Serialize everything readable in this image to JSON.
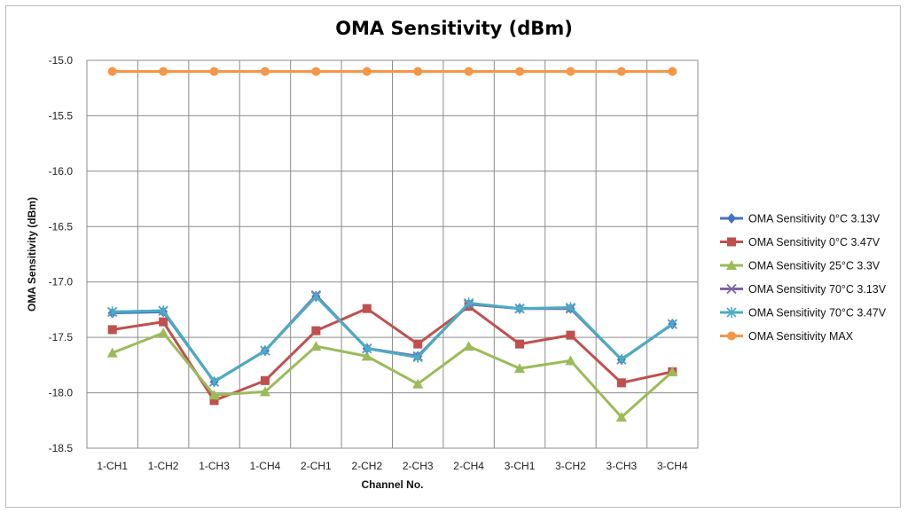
{
  "chart_data": {
    "type": "line",
    "title": "OMA Sensitivity (dBm)",
    "xlabel": "Channel No.",
    "ylabel": "OMA Sensitivity (dBm)",
    "ylim": [
      -18.5,
      -15.0
    ],
    "yticks": [
      -15.0,
      -15.5,
      -16.0,
      -16.5,
      -17.0,
      -17.5,
      -18.0,
      -18.5
    ],
    "ytick_labels": [
      "-15.0",
      "-15.5",
      "-16.0",
      "-16.5",
      "-17.0",
      "-17.5",
      "-18.0",
      "-18.5"
    ],
    "grid": true,
    "legend_position": "right",
    "categories": [
      "1-CH1",
      "1-CH2",
      "1-CH3",
      "1-CH4",
      "2-CH1",
      "2-CH2",
      "2-CH3",
      "2-CH4",
      "3-CH1",
      "3-CH2",
      "3-CH3",
      "3-CH4"
    ],
    "series": [
      {
        "name": "OMA Sensitivity 0°C 3.13V",
        "color": "#4472c4",
        "marker": "diamond",
        "values": [
          -17.28,
          -17.27,
          -17.9,
          -17.62,
          -17.13,
          -17.6,
          -17.67,
          -17.2,
          -17.24,
          -17.24,
          -17.7,
          -17.38
        ]
      },
      {
        "name": "OMA Sensitivity 0°C 3.47V",
        "color": "#c0504d",
        "marker": "square",
        "values": [
          -17.43,
          -17.36,
          -18.07,
          -17.89,
          -17.44,
          -17.24,
          -17.56,
          -17.22,
          -17.56,
          -17.48,
          -17.91,
          -17.81
        ]
      },
      {
        "name": "OMA Sensitivity 25°C 3.3V",
        "color": "#9bbb59",
        "marker": "triangle",
        "values": [
          -17.64,
          -17.46,
          -18.02,
          -17.99,
          -17.58,
          -17.67,
          -17.92,
          -17.58,
          -17.78,
          -17.71,
          -18.22,
          -17.81
        ]
      },
      {
        "name": "OMA Sensitivity 70°C 3.13V",
        "color": "#8064a2",
        "marker": "x",
        "values": [
          -17.27,
          -17.26,
          -17.9,
          -17.62,
          -17.12,
          -17.6,
          -17.67,
          -17.2,
          -17.24,
          -17.24,
          -17.7,
          -17.38
        ]
      },
      {
        "name": "OMA Sensitivity 70°C 3.47V",
        "color": "#4bacc6",
        "marker": "star",
        "values": [
          -17.27,
          -17.26,
          -17.9,
          -17.62,
          -17.13,
          -17.6,
          -17.68,
          -17.19,
          -17.24,
          -17.23,
          -17.7,
          -17.38
        ]
      },
      {
        "name": "OMA Sensitivity MAX",
        "color": "#f79646",
        "marker": "circle",
        "values": [
          -15.1,
          -15.1,
          -15.1,
          -15.1,
          -15.1,
          -15.1,
          -15.1,
          -15.1,
          -15.1,
          -15.1,
          -15.1,
          -15.1
        ]
      }
    ]
  }
}
